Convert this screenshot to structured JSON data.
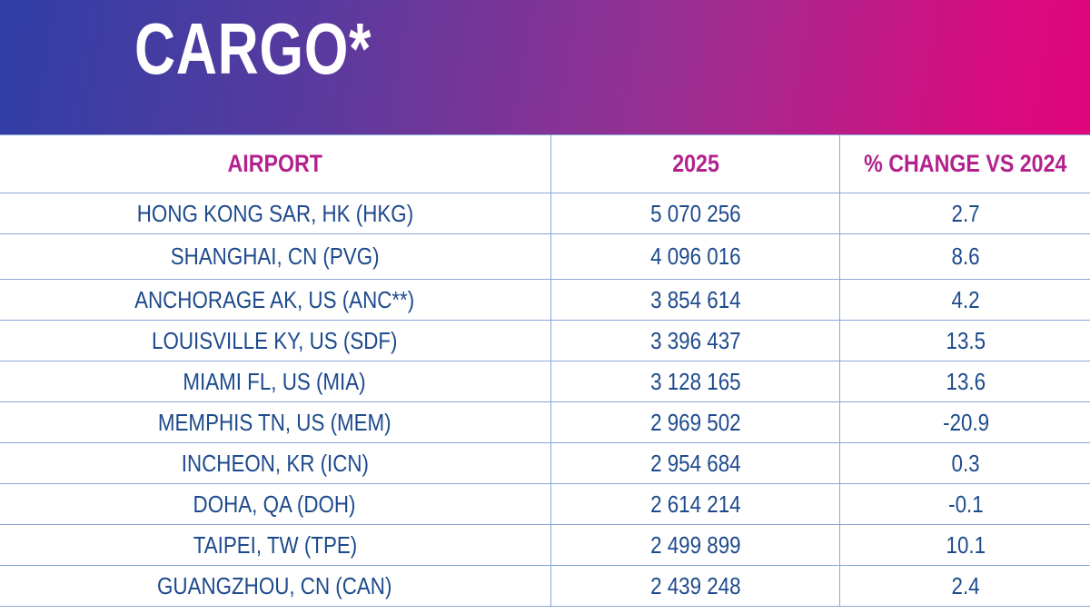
{
  "title": "CARGO*",
  "columns": [
    "AIRPORT",
    "2025",
    "% CHANGE VS 2024"
  ],
  "rows": [
    {
      "airport": "HONG KONG SAR, HK (HKG)",
      "value": "5 070 256",
      "change": "2.7"
    },
    {
      "airport": "SHANGHAI, CN (PVG)",
      "value": "4 096 016",
      "change": "8.6"
    },
    {
      "airport": "ANCHORAGE AK, US (ANC**)",
      "value": "3 854 614",
      "change": "4.2"
    },
    {
      "airport": "LOUISVILLE KY, US (SDF)",
      "value": "3 396 437",
      "change": "13.5"
    },
    {
      "airport": "MIAMI FL, US (MIA)",
      "value": "3 128 165",
      "change": "13.6"
    },
    {
      "airport": "MEMPHIS TN, US (MEM)",
      "value": "2 969 502",
      "change": "-20.9"
    },
    {
      "airport": "INCHEON, KR (ICN)",
      "value": "2 954 684",
      "change": "0.3"
    },
    {
      "airport": "DOHA, QA (DOH)",
      "value": "2 614 214",
      "change": "-0.1"
    },
    {
      "airport": "TAIPEI, TW (TPE)",
      "value": "2 499 899",
      "change": "10.1"
    },
    {
      "airport": "GUANGZHOU, CN (CAN)",
      "value": "2 439 248",
      "change": "2.4"
    }
  ]
}
